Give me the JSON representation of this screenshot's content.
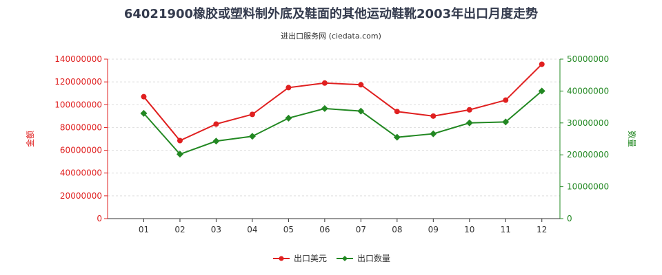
{
  "chart_data": {
    "type": "line",
    "title": "64021900橡胶或塑料制外底及鞋面的其他运动鞋靴2003年出口月度走势",
    "subtitle": "进出口服务网 (ciedata.com)",
    "categories": [
      "01",
      "02",
      "03",
      "04",
      "05",
      "06",
      "07",
      "08",
      "09",
      "10",
      "11",
      "12"
    ],
    "y_left": {
      "label": "金额",
      "range": [
        0,
        140000000
      ],
      "ticks": [
        0,
        20000000,
        40000000,
        60000000,
        80000000,
        100000000,
        120000000,
        140000000
      ],
      "color": "#e02020"
    },
    "y_right": {
      "label": "数量",
      "range": [
        0,
        50000000
      ],
      "ticks": [
        0,
        10000000,
        20000000,
        30000000,
        40000000,
        50000000
      ],
      "color": "#228822"
    },
    "series": [
      {
        "name": "出口美元",
        "axis": "left",
        "color": "#e02020",
        "values": [
          107000000,
          68500000,
          83000000,
          91500000,
          115000000,
          119000000,
          117500000,
          94000000,
          90000000,
          95500000,
          104000000,
          135500000
        ]
      },
      {
        "name": "出口数量",
        "axis": "right",
        "color": "#228822",
        "values": [
          33000000,
          20200000,
          24300000,
          25800000,
          31500000,
          34500000,
          33700000,
          25500000,
          26600000,
          30000000,
          30300000,
          40000000
        ]
      }
    ],
    "grid": true,
    "legend": "bottom"
  }
}
